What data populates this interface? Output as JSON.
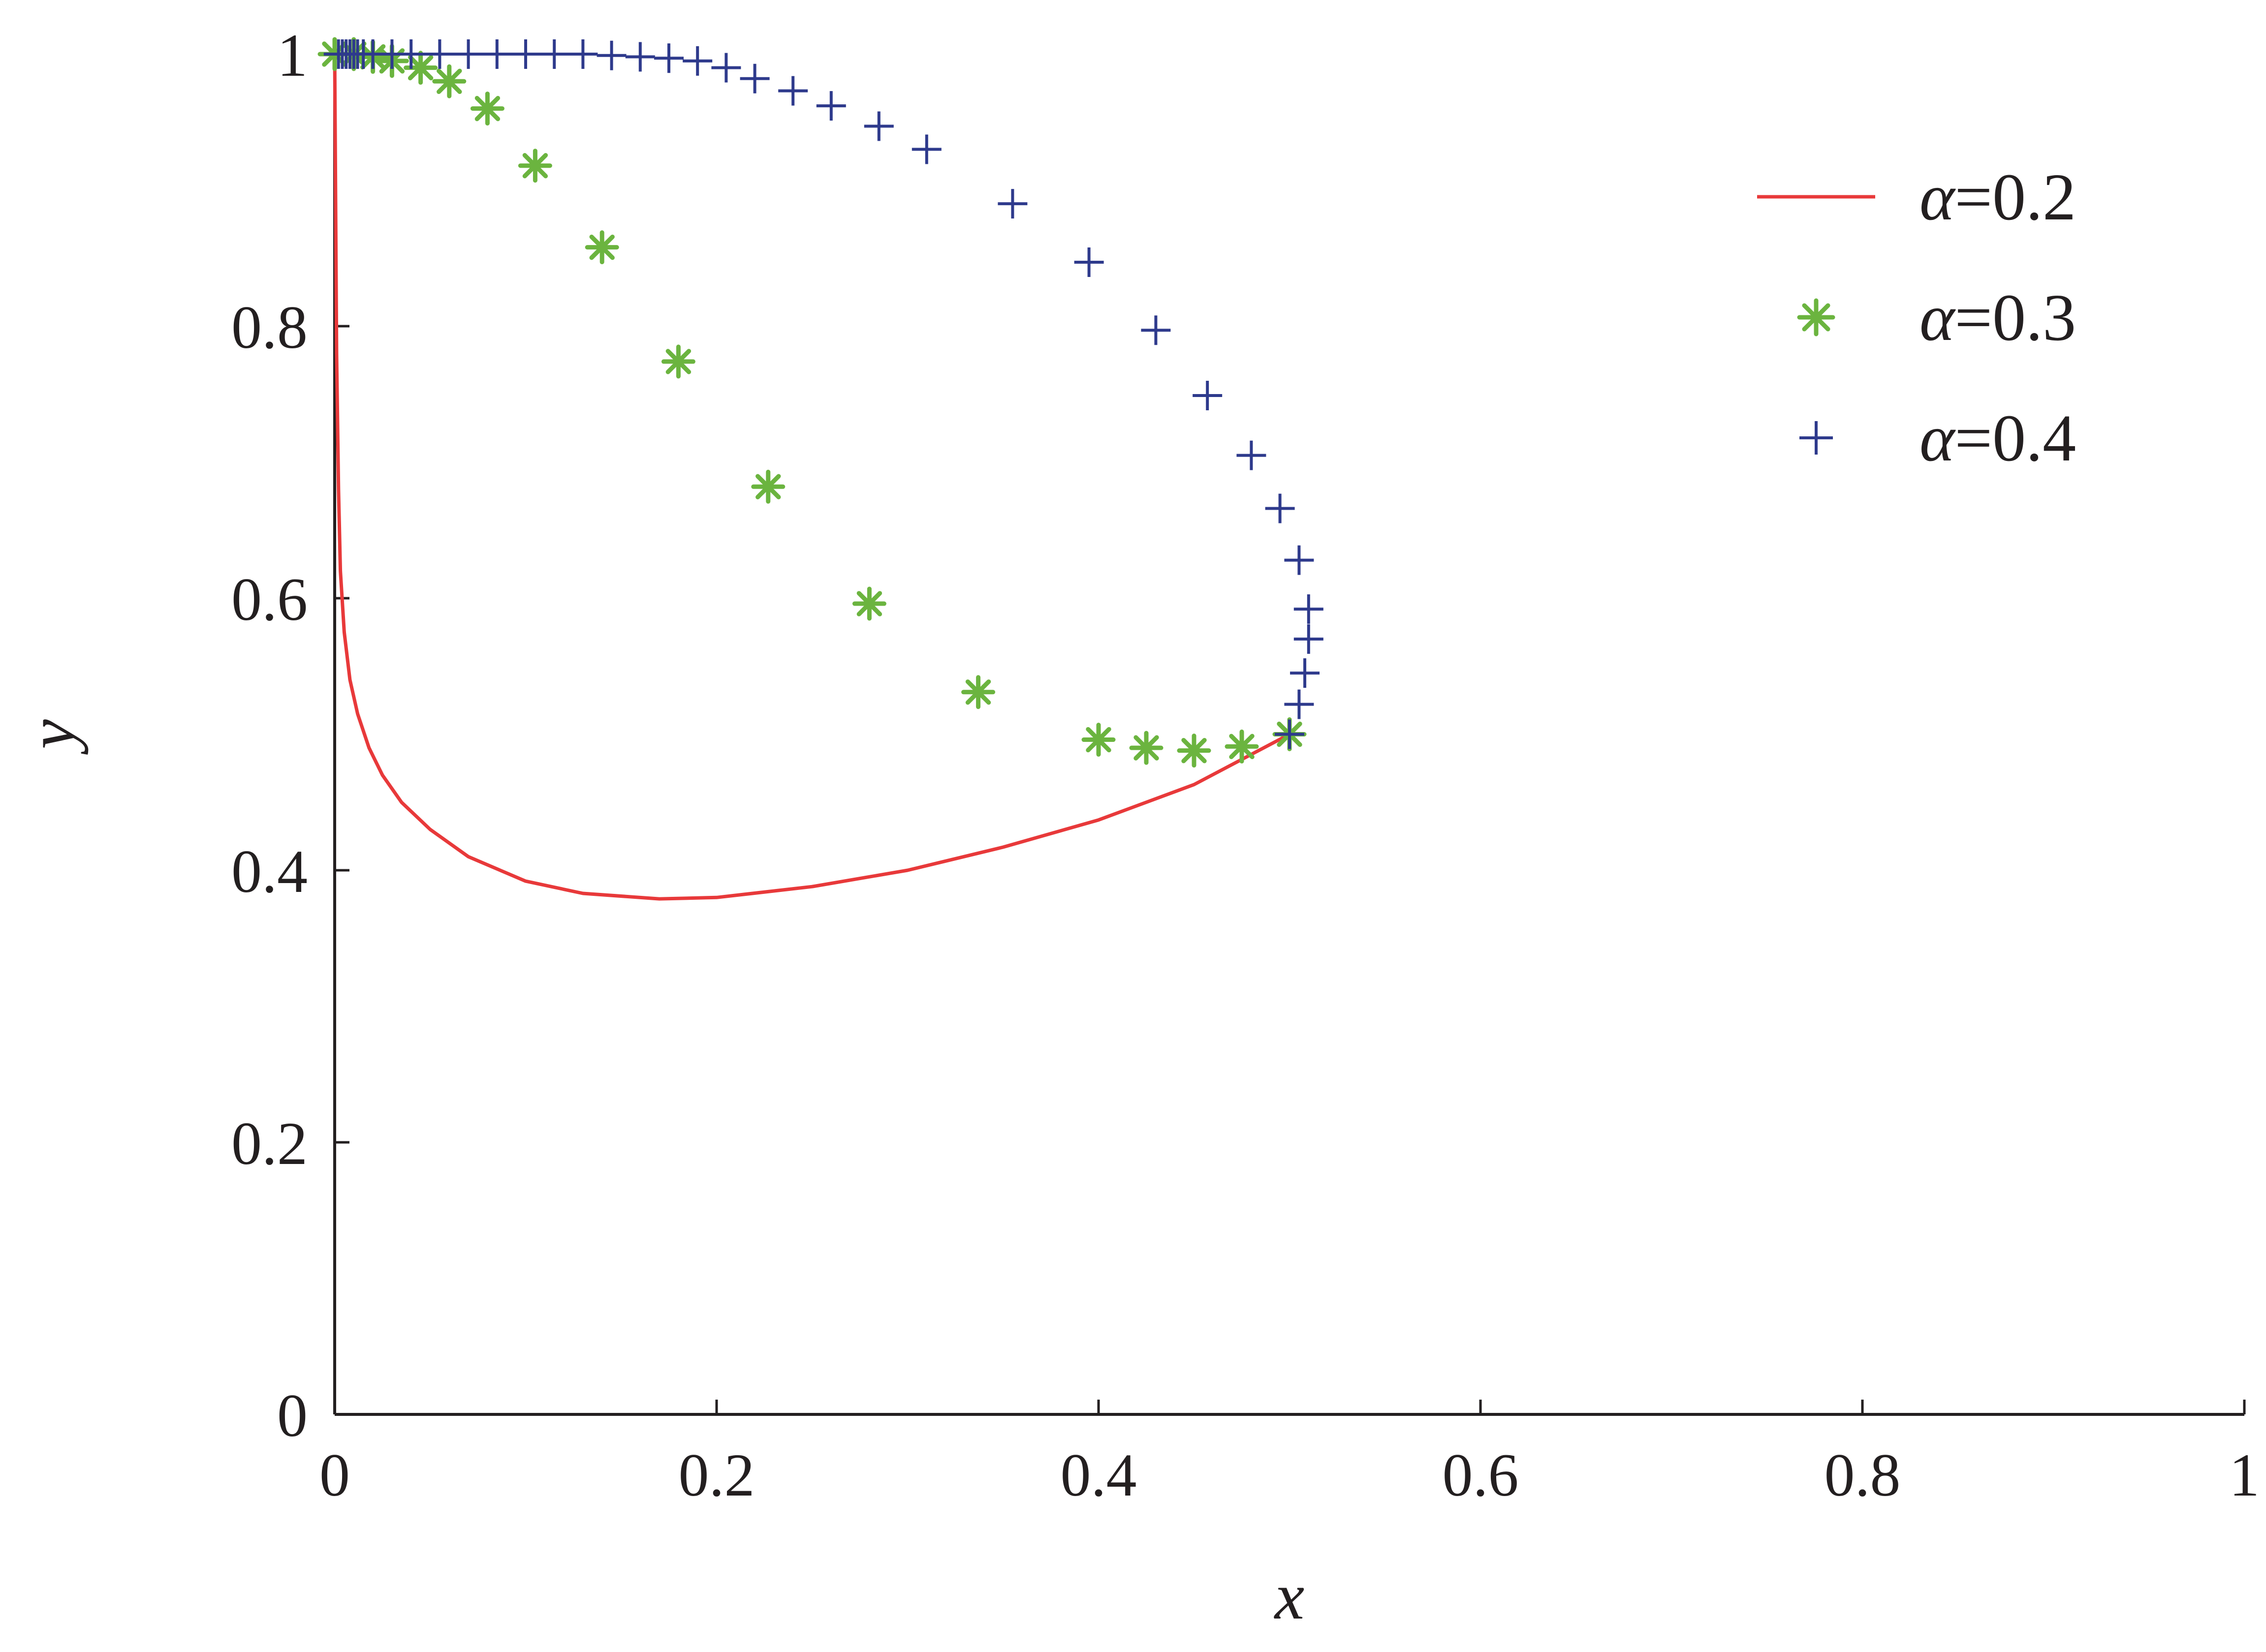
{
  "chart_data": {
    "type": "line",
    "title": "",
    "xlabel": "x",
    "ylabel": "y",
    "xlim": [
      0,
      1
    ],
    "ylim": [
      0,
      1
    ],
    "x_ticks": [
      0,
      0.2,
      0.4,
      0.6,
      0.8,
      1
    ],
    "y_ticks": [
      0,
      0.2,
      0.4,
      0.6,
      0.8,
      1
    ],
    "x_tick_labels": [
      "0",
      "0.2",
      "0.4",
      "0.6",
      "0.8",
      "1"
    ],
    "y_tick_labels": [
      "0",
      "0.2",
      "0.4",
      "0.6",
      "0.8",
      "1"
    ],
    "grid": false,
    "legend_position": "top-right",
    "series": [
      {
        "name": "α=0.2",
        "label_symbol": "α",
        "label_value": "=0.2",
        "style": "line",
        "color": "#e8393a",
        "x": [
          0.0,
          0.001,
          0.002,
          0.003,
          0.005,
          0.008,
          0.012,
          0.018,
          0.025,
          0.035,
          0.05,
          0.07,
          0.1,
          0.13,
          0.17,
          0.2,
          0.25,
          0.3,
          0.35,
          0.4,
          0.45,
          0.5
        ],
        "y": [
          1.0,
          0.78,
          0.68,
          0.62,
          0.575,
          0.54,
          0.515,
          0.49,
          0.47,
          0.45,
          0.43,
          0.41,
          0.392,
          0.383,
          0.379,
          0.38,
          0.388,
          0.4,
          0.417,
          0.437,
          0.463,
          0.5
        ]
      },
      {
        "name": "α=0.3",
        "label_symbol": "α",
        "label_value": "=0.3",
        "style": "asterisk",
        "color": "#6bb43f",
        "x": [
          0.0,
          0.01,
          0.02,
          0.03,
          0.045,
          0.06,
          0.08,
          0.105,
          0.14,
          0.18,
          0.227,
          0.28,
          0.337,
          0.4,
          0.425,
          0.45,
          0.475,
          0.5
        ],
        "y": [
          1.0,
          1.0,
          0.998,
          0.995,
          0.99,
          0.98,
          0.96,
          0.918,
          0.858,
          0.774,
          0.682,
          0.596,
          0.531,
          0.496,
          0.49,
          0.488,
          0.491,
          0.5
        ]
      },
      {
        "name": "α=0.4",
        "label_symbol": "α",
        "label_value": "=0.4",
        "style": "plus",
        "color": "#2e3a8c",
        "x": [
          0.002,
          0.004,
          0.006,
          0.008,
          0.01,
          0.012,
          0.015,
          0.02,
          0.03,
          0.04,
          0.055,
          0.07,
          0.085,
          0.1,
          0.115,
          0.13,
          0.145,
          0.16,
          0.175,
          0.19,
          0.205,
          0.22,
          0.24,
          0.26,
          0.285,
          0.31,
          0.355,
          0.395,
          0.43,
          0.457,
          0.48,
          0.495,
          0.505,
          0.51,
          0.51,
          0.508,
          0.505,
          0.5
        ],
        "y": [
          1.0,
          1.0,
          1.0,
          1.0,
          1.0,
          1.0,
          1.0,
          1.0,
          1.0,
          1.0,
          1.0,
          1.0,
          1.0,
          1.0,
          1.0,
          1.0,
          0.999,
          0.998,
          0.997,
          0.995,
          0.99,
          0.982,
          0.973,
          0.962,
          0.947,
          0.93,
          0.89,
          0.847,
          0.797,
          0.749,
          0.705,
          0.666,
          0.628,
          0.592,
          0.57,
          0.545,
          0.522,
          0.5
        ]
      }
    ]
  }
}
